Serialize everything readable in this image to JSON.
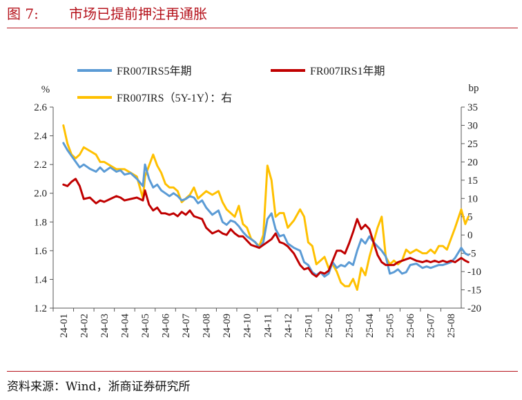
{
  "figure": {
    "number": "图 7:",
    "title": "市场已提前押注再通胀",
    "source": "资料来源：Wind，浙商证券研究所"
  },
  "chart_data": {
    "type": "line",
    "left_unit": "%",
    "right_unit": "bp",
    "ylim_left": [
      1.2,
      2.6
    ],
    "ylim_right": [
      -20,
      35
    ],
    "yticks_left": [
      "1.2",
      "1.4",
      "1.6",
      "1.8",
      "2.0",
      "2.2",
      "2.4",
      "2.6"
    ],
    "yticks_right": [
      "-20",
      "-15",
      "-10",
      "-5",
      "0",
      "5",
      "10",
      "15",
      "20",
      "25",
      "30",
      "35"
    ],
    "x_categories": [
      "24-01",
      "24-02",
      "24-03",
      "24-04",
      "24-05",
      "24-06",
      "24-07",
      "24-08",
      "24-09",
      "24-10",
      "24-11",
      "24-12",
      "25-01",
      "25-02",
      "25-03",
      "25-04",
      "25-05",
      "25-06",
      "25-07",
      "25-08"
    ],
    "legend": [
      {
        "label": "FR007IRS5年期",
        "color": "#5b9bd5"
      },
      {
        "label": "FR007IRS1年期",
        "color": "#c00000"
      },
      {
        "label": "FR007IRS（5Y-1Y）：右",
        "color": "#ffc000"
      }
    ],
    "series": [
      {
        "name": "FR007IRS5年期",
        "axis": "left",
        "color": "#5b9bd5",
        "x": [
          0,
          0.2,
          0.4,
          0.6,
          0.8,
          1.0,
          1.3,
          1.6,
          1.8,
          2.0,
          2.3,
          2.6,
          2.8,
          3.0,
          3.3,
          3.6,
          3.9,
          4.0,
          4.2,
          4.4,
          4.6,
          4.8,
          5.0,
          5.2,
          5.4,
          5.6,
          5.8,
          6.0,
          6.2,
          6.4,
          6.6,
          6.8,
          7.0,
          7.3,
          7.6,
          7.8,
          8.0,
          8.2,
          8.4,
          8.6,
          8.8,
          9.0,
          9.2,
          9.4,
          9.6,
          9.8,
          10.0,
          10.2,
          10.4,
          10.6,
          10.8,
          11.0,
          11.3,
          11.6,
          11.8,
          12.0,
          12.2,
          12.4,
          12.6,
          12.8,
          13.0,
          13.2,
          13.4,
          13.6,
          13.8,
          14.0,
          14.2,
          14.4,
          14.6,
          14.8,
          15.0,
          15.2,
          15.4,
          15.6,
          15.8,
          16.0,
          16.2,
          16.4,
          16.6,
          16.8,
          17.0,
          17.3,
          17.6,
          17.8,
          18.0,
          18.2,
          18.4,
          18.6,
          18.8,
          19.0,
          19.2,
          19.5,
          19.7,
          19.85
        ],
        "values": [
          2.35,
          2.3,
          2.26,
          2.22,
          2.18,
          2.2,
          2.17,
          2.15,
          2.18,
          2.15,
          2.18,
          2.15,
          2.16,
          2.13,
          2.14,
          2.1,
          2.05,
          2.2,
          2.1,
          2.04,
          2.06,
          2.02,
          2.0,
          1.98,
          2.0,
          1.98,
          1.95,
          1.96,
          1.98,
          1.97,
          1.93,
          1.95,
          1.9,
          1.85,
          1.88,
          1.8,
          1.78,
          1.81,
          1.8,
          1.77,
          1.73,
          1.7,
          1.68,
          1.66,
          1.62,
          1.66,
          1.82,
          1.86,
          1.75,
          1.7,
          1.71,
          1.65,
          1.62,
          1.6,
          1.52,
          1.5,
          1.45,
          1.43,
          1.45,
          1.42,
          1.44,
          1.52,
          1.48,
          1.5,
          1.49,
          1.52,
          1.5,
          1.6,
          1.68,
          1.65,
          1.7,
          1.66,
          1.63,
          1.6,
          1.56,
          1.44,
          1.45,
          1.47,
          1.44,
          1.45,
          1.5,
          1.51,
          1.48,
          1.49,
          1.48,
          1.49,
          1.5,
          1.5,
          1.51,
          1.52,
          1.55,
          1.62,
          1.58,
          1.57
        ]
      },
      {
        "name": "FR007IRS1年期",
        "axis": "left",
        "color": "#c00000",
        "x": [
          0,
          0.2,
          0.4,
          0.6,
          0.8,
          1.0,
          1.3,
          1.6,
          1.8,
          2.0,
          2.3,
          2.6,
          2.8,
          3.0,
          3.3,
          3.6,
          3.9,
          4.0,
          4.2,
          4.4,
          4.6,
          4.8,
          5.0,
          5.2,
          5.4,
          5.6,
          5.8,
          6.0,
          6.2,
          6.4,
          6.6,
          6.8,
          7.0,
          7.3,
          7.6,
          7.8,
          8.0,
          8.2,
          8.4,
          8.6,
          8.8,
          9.0,
          9.2,
          9.4,
          9.6,
          9.8,
          10.0,
          10.2,
          10.4,
          10.6,
          10.8,
          11.0,
          11.3,
          11.6,
          11.8,
          12.0,
          12.2,
          12.4,
          12.6,
          12.8,
          13.0,
          13.2,
          13.4,
          13.6,
          13.8,
          14.0,
          14.2,
          14.4,
          14.6,
          14.8,
          15.0,
          15.2,
          15.4,
          15.6,
          15.8,
          16.0,
          16.2,
          16.4,
          16.6,
          16.8,
          17.0,
          17.3,
          17.6,
          17.8,
          18.0,
          18.2,
          18.4,
          18.6,
          18.8,
          19.0,
          19.2,
          19.5,
          19.7,
          19.85
        ],
        "values": [
          2.06,
          2.05,
          2.08,
          2.1,
          2.05,
          1.96,
          1.97,
          1.93,
          1.95,
          1.94,
          1.96,
          1.98,
          1.97,
          1.95,
          1.96,
          1.97,
          1.95,
          2.02,
          1.92,
          1.88,
          1.9,
          1.86,
          1.86,
          1.85,
          1.86,
          1.84,
          1.87,
          1.85,
          1.88,
          1.84,
          1.83,
          1.82,
          1.76,
          1.72,
          1.74,
          1.72,
          1.71,
          1.75,
          1.72,
          1.7,
          1.7,
          1.67,
          1.64,
          1.63,
          1.62,
          1.64,
          1.66,
          1.68,
          1.72,
          1.66,
          1.65,
          1.63,
          1.58,
          1.5,
          1.47,
          1.48,
          1.44,
          1.42,
          1.45,
          1.44,
          1.46,
          1.53,
          1.6,
          1.6,
          1.58,
          1.65,
          1.73,
          1.82,
          1.75,
          1.78,
          1.75,
          1.66,
          1.57,
          1.52,
          1.5,
          1.5,
          1.5,
          1.52,
          1.53,
          1.54,
          1.55,
          1.53,
          1.52,
          1.53,
          1.52,
          1.53,
          1.52,
          1.53,
          1.52,
          1.53,
          1.52,
          1.55,
          1.53,
          1.52
        ]
      },
      {
        "name": "FR007IRS（5Y-1Y）：右",
        "axis": "right",
        "color": "#ffc000",
        "x": [
          0,
          0.2,
          0.4,
          0.6,
          0.8,
          1.0,
          1.3,
          1.6,
          1.8,
          2.0,
          2.3,
          2.6,
          2.8,
          3.0,
          3.3,
          3.6,
          3.9,
          4.0,
          4.2,
          4.4,
          4.6,
          4.8,
          5.0,
          5.2,
          5.4,
          5.6,
          5.8,
          6.0,
          6.2,
          6.4,
          6.6,
          6.8,
          7.0,
          7.3,
          7.6,
          7.8,
          8.0,
          8.2,
          8.4,
          8.6,
          8.8,
          9.0,
          9.2,
          9.4,
          9.6,
          9.8,
          10.0,
          10.2,
          10.4,
          10.6,
          10.8,
          11.0,
          11.3,
          11.6,
          11.8,
          12.0,
          12.2,
          12.4,
          12.6,
          12.8,
          13.0,
          13.2,
          13.4,
          13.6,
          13.8,
          14.0,
          14.2,
          14.4,
          14.6,
          14.8,
          15.0,
          15.2,
          15.4,
          15.6,
          15.8,
          16.0,
          16.2,
          16.4,
          16.6,
          16.8,
          17.0,
          17.3,
          17.6,
          17.8,
          18.0,
          18.2,
          18.4,
          18.6,
          18.8,
          19.0,
          19.2,
          19.5,
          19.7,
          19.85
        ],
        "values": [
          30,
          25,
          22,
          21,
          22,
          24,
          23,
          22,
          20,
          20,
          19,
          18,
          18,
          18,
          17,
          16,
          10,
          16,
          19,
          22,
          19,
          17,
          14,
          13,
          13,
          12,
          9,
          10,
          11,
          13,
          10,
          11,
          12,
          11,
          12,
          9,
          7,
          6,
          5,
          8,
          3,
          2,
          -1,
          -2,
          -3,
          0,
          19,
          15,
          5,
          6,
          6,
          2,
          4,
          7,
          5,
          -2,
          -3,
          -8,
          -7,
          -6,
          -9,
          -8,
          -10,
          -13,
          -14,
          -14,
          -12,
          -15,
          -9,
          -11,
          -6,
          -2,
          2,
          5,
          -6,
          -8,
          -7,
          -8,
          -7,
          -4,
          -5,
          -4,
          -5,
          -5,
          -4,
          -5,
          -3,
          -3,
          -4,
          -1,
          2,
          7,
          3,
          5
        ]
      }
    ]
  }
}
